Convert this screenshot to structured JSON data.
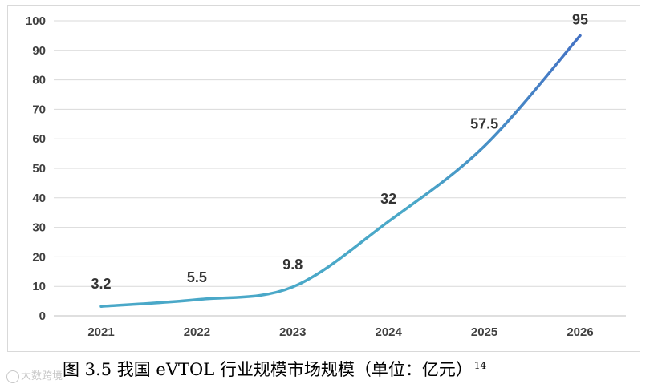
{
  "chart_data": {
    "type": "line",
    "categories": [
      "2021",
      "2022",
      "2023",
      "2024",
      "2025",
      "2026"
    ],
    "values": [
      3.2,
      5.5,
      9.8,
      32,
      57.5,
      95
    ],
    "data_labels": [
      "3.2",
      "5.5",
      "9.8",
      "32",
      "57.5",
      "95"
    ],
    "yticks": [
      "0",
      "10",
      "20",
      "30",
      "40",
      "50",
      "60",
      "70",
      "80",
      "90",
      "100"
    ],
    "ylim": [
      0,
      100
    ],
    "grid": true,
    "title": "",
    "xlabel": "",
    "ylabel": "",
    "line_color_start": "#4aa8c8",
    "line_color_end": "#4472c4"
  },
  "caption": {
    "text": "图 3.5  我国 eVTOL 行业规模市场规模（单位：亿元）",
    "footnote": "14"
  },
  "watermark": {
    "text": "大数跨境"
  }
}
